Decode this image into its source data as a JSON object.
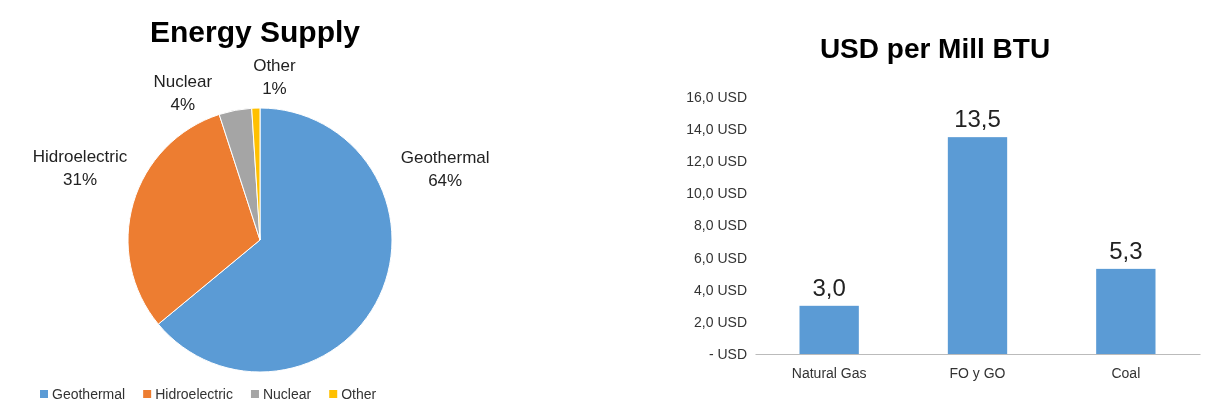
{
  "chart_data": [
    {
      "type": "pie",
      "title": "Energy Supply",
      "categories": [
        "Geothermal",
        "Hidroelectric",
        "Nuclear",
        "Other"
      ],
      "values": [
        64,
        31,
        4,
        1
      ],
      "colors": [
        "#5b9bd5",
        "#ed7d31",
        "#a5a5a5",
        "#ffc000"
      ],
      "value_labels": [
        "64%",
        "31%",
        "4%",
        "1%"
      ],
      "legend": "bottom"
    },
    {
      "type": "bar",
      "title": "USD per Mill BTU",
      "categories": [
        "Natural Gas",
        "FO y GO",
        "Coal"
      ],
      "values": [
        3.0,
        13.5,
        5.3
      ],
      "color": "#5b9bd5",
      "value_labels": [
        "3,0",
        "13,5",
        "5,3"
      ],
      "ylim": [
        0,
        16
      ],
      "yticks": [
        {
          "value": 0,
          "label": "-   USD"
        },
        {
          "value": 2,
          "label": "2,0 USD"
        },
        {
          "value": 4,
          "label": "4,0 USD"
        },
        {
          "value": 6,
          "label": "6,0 USD"
        },
        {
          "value": 8,
          "label": "8,0 USD"
        },
        {
          "value": 10,
          "label": "10,0 USD"
        },
        {
          "value": 12,
          "label": "12,0 USD"
        },
        {
          "value": 14,
          "label": "14,0 USD"
        },
        {
          "value": 16,
          "label": "16,0 USD"
        }
      ],
      "grid": false
    }
  ]
}
